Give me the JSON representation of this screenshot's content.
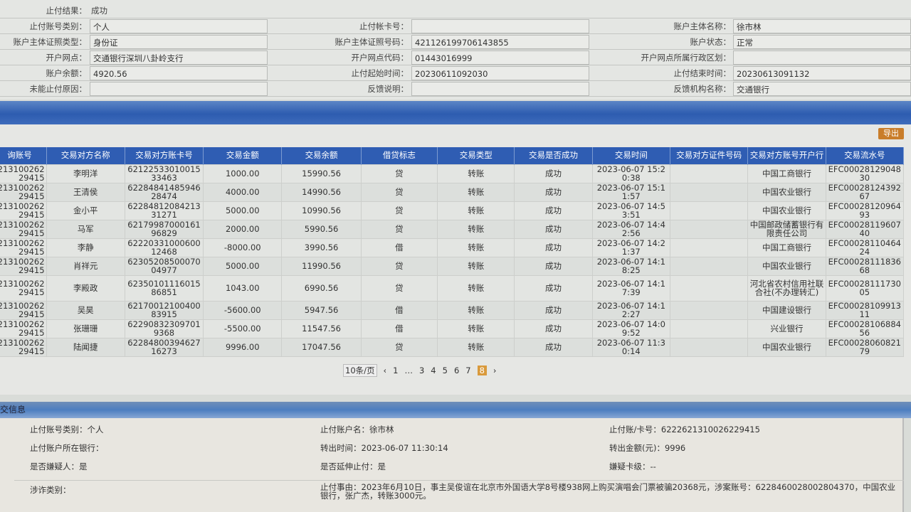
{
  "info": {
    "result_label": "止付结果：",
    "result_value": "成功",
    "rows": [
      [
        [
          "止付账号类别：",
          "个人"
        ],
        [
          "止付帐卡号：",
          ""
        ],
        [
          "账户主体名称：",
          "徐市林"
        ]
      ],
      [
        [
          "账户主体证照类型：",
          "身份证"
        ],
        [
          "账户主体证照号码：",
          "421126199706143855"
        ],
        [
          "账户状态：",
          "正常"
        ]
      ],
      [
        [
          "开户网点：",
          "交通银行深圳八卦岭支行"
        ],
        [
          "开户网点代码：",
          "01443016999"
        ],
        [
          "开户网点所属行政区划：",
          ""
        ]
      ],
      [
        [
          "账户余额：",
          "4920.56"
        ],
        [
          "止付起始时间：",
          "20230611092030"
        ],
        [
          "止付结束时间：",
          "20230613091132"
        ]
      ],
      [
        [
          "未能止付原因：",
          ""
        ],
        [
          "反馈说明：",
          ""
        ],
        [
          "反馈机构名称：",
          "交通银行"
        ]
      ]
    ]
  },
  "export_label": "导出",
  "table": {
    "headers": [
      "询账号",
      "交易对方名称",
      "交易对方账卡号",
      "交易金额",
      "交易余额",
      "借贷标志",
      "交易类型",
      "交易是否成功",
      "交易时间",
      "交易对方证件号码",
      "交易对方账号开户行",
      "交易流水号"
    ],
    "rows": [
      [
        "213100262 29415",
        "李明洋",
        "6212253301001533463",
        "1000.00",
        "15990.56",
        "贷",
        "转账",
        "成功",
        "2023-06-07 15:20:38",
        "",
        "中国工商银行",
        "EFC0002812904830"
      ],
      [
        "213100262 29415",
        "王清侯",
        "6228484148594628474",
        "4000.00",
        "14990.56",
        "贷",
        "转账",
        "成功",
        "2023-06-07 15:11:57",
        "",
        "中国农业银行",
        "EFC0002812439267"
      ],
      [
        "213100262 29415",
        "金小平",
        "6228481208421331271",
        "5000.00",
        "10990.56",
        "贷",
        "转账",
        "成功",
        "2023-06-07 14:53:51",
        "",
        "中国农业银行",
        "EFC0002812096493"
      ],
      [
        "213100262 29415",
        "马军",
        "6217998700016196829",
        "2000.00",
        "5990.56",
        "贷",
        "转账",
        "成功",
        "2023-06-07 14:42:56",
        "",
        "中国邮政储蓄银行有限责任公司",
        "EFC0002811960740"
      ],
      [
        "213100262 29415",
        "李静",
        "6222033100060012468",
        "-8000.00",
        "3990.56",
        "借",
        "转账",
        "成功",
        "2023-06-07 14:21:37",
        "",
        "中国工商银行",
        "EFC0002811046424"
      ],
      [
        "213100262 29415",
        "肖祥元",
        "6230520850007004977",
        "5000.00",
        "11990.56",
        "贷",
        "转账",
        "成功",
        "2023-06-07 14:18:25",
        "",
        "中国农业银行",
        "EFC0002811183668"
      ],
      [
        "213100262 29415",
        "李殿政",
        "6235010111601586851",
        "1043.00",
        "6990.56",
        "贷",
        "转账",
        "成功",
        "2023-06-07 14:17:39",
        "",
        "河北省农村信用社联合社(不办理转汇)",
        "EFC0002811173005"
      ],
      [
        "213100262 29415",
        "吴昊",
        "6217001210040083915",
        "-5600.00",
        "5947.56",
        "借",
        "转账",
        "成功",
        "2023-06-07 14:12:27",
        "",
        "中国建设银行",
        "EFC0002810991311"
      ],
      [
        "213100262 29415",
        "张珊珊",
        "622908323097019368",
        "-5500.00",
        "11547.56",
        "借",
        "转账",
        "成功",
        "2023-06-07 14:09:52",
        "",
        "兴业银行",
        "EFC0002810688456"
      ],
      [
        "213100262 29415",
        "陆闻捷",
        "6228480039462716273",
        "9996.00",
        "17047.56",
        "贷",
        "转账",
        "成功",
        "2023-06-07 11:30:14",
        "",
        "中国农业银行",
        "EFC0002806082179"
      ]
    ]
  },
  "pager": {
    "page_size": "10条/页",
    "pages": [
      "1",
      "…",
      "3",
      "4",
      "5",
      "6",
      "7",
      "8"
    ],
    "current": "8"
  },
  "section2": {
    "title": "交信息",
    "items": [
      "止付账号类别：个人",
      "止付账户名：徐市林",
      "止付账/卡号：6222621310026229415",
      "止付账户所在银行：",
      "转出时间：2023-06-07 11:30:14",
      "转出金额(元)：9996",
      "是否嫌疑人：是",
      "是否延伸止付：是",
      "嫌疑卡级：--"
    ],
    "fraud_label": "涉诈类别：",
    "reason": "止付事由：2023年6月10日，事主吴俊谊在北京市外国语大学8号楼938网上购买演唱会门票被骗20368元，涉案账号：6228460028002804370，中国农业银行，张广杰，转账3000元。"
  }
}
